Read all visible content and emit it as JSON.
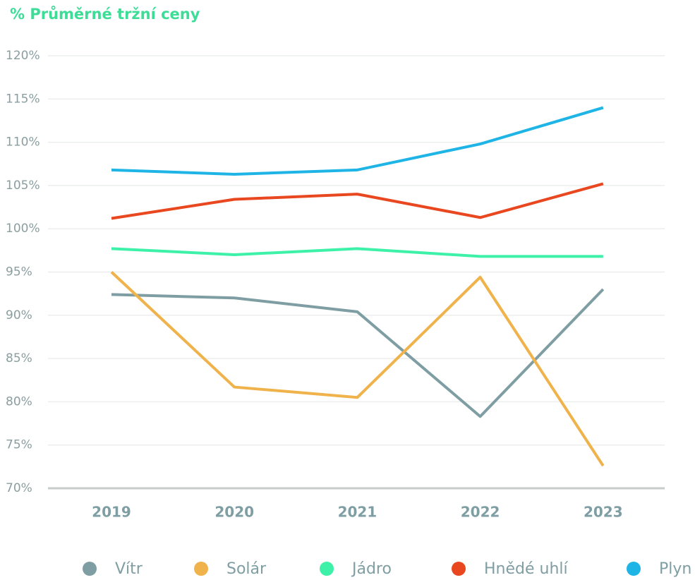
{
  "chart_data": {
    "type": "line",
    "title": "% Průměrné tržní ceny",
    "categories": [
      "2019",
      "2020",
      "2021",
      "2022",
      "2023"
    ],
    "series": [
      {
        "name": "Vítr",
        "color": "#7f9ea3",
        "values": [
          92.4,
          92.0,
          90.4,
          78.3,
          93.0
        ]
      },
      {
        "name": "Solár",
        "color": "#f0b24a",
        "values": [
          95.0,
          81.7,
          80.5,
          94.4,
          72.6
        ]
      },
      {
        "name": "Jádro",
        "color": "#3df2a8",
        "values": [
          97.7,
          97.0,
          97.7,
          96.8,
          96.8
        ]
      },
      {
        "name": "Hnědé uhlí",
        "color": "#e8471f",
        "values": [
          101.2,
          103.4,
          104.0,
          101.3,
          105.2
        ]
      },
      {
        "name": "Plyn",
        "color": "#1eb4e6",
        "values": [
          106.8,
          106.3,
          106.8,
          109.8,
          114.0
        ]
      }
    ],
    "ylim": [
      70,
      120
    ],
    "yticks": [
      {
        "value": 70,
        "label": "70%"
      },
      {
        "value": 75,
        "label": "75%"
      },
      {
        "value": 80,
        "label": "80%"
      },
      {
        "value": 85,
        "label": "85%"
      },
      {
        "value": 90,
        "label": "90%"
      },
      {
        "value": 95,
        "label": "95%"
      },
      {
        "value": 100,
        "label": "100%"
      },
      {
        "value": 105,
        "label": "105%"
      },
      {
        "value": 110,
        "label": "110%"
      },
      {
        "value": 115,
        "label": "115%"
      },
      {
        "value": 120,
        "label": "120%"
      }
    ],
    "grid": true,
    "legend": "bottom"
  }
}
